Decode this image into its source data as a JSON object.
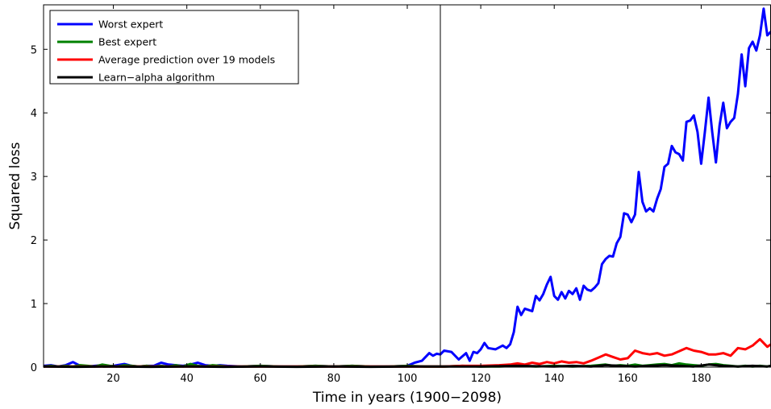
{
  "chart_data": {
    "type": "line",
    "xlabel": "Time in years (1900−2098)",
    "ylabel": "Squared loss",
    "xlim": [
      1,
      199
    ],
    "ylim": [
      0,
      5.7
    ],
    "xticks": [
      20,
      40,
      60,
      80,
      100,
      120,
      140,
      160,
      180
    ],
    "yticks": [
      0,
      1,
      2,
      3,
      4,
      5
    ],
    "grid": false,
    "legend_position": "top-left",
    "vertical_marker_x": 109,
    "colors": {
      "worst": "#0000ff",
      "best": "#008000",
      "average": "#ff0000",
      "learn_alpha": "#000000"
    },
    "series": [
      {
        "name": "Worst expert",
        "color": "#0000ff",
        "x": [
          1,
          3,
          5,
          7,
          9,
          11,
          13,
          15,
          17,
          19,
          21,
          23,
          25,
          27,
          29,
          31,
          33,
          35,
          37,
          39,
          41,
          43,
          45,
          47,
          49,
          51,
          55,
          60,
          65,
          70,
          75,
          80,
          85,
          90,
          95,
          100,
          102,
          104,
          106,
          107,
          108,
          109,
          110,
          112,
          114,
          116,
          117,
          118,
          119,
          120,
          121,
          122,
          124,
          126,
          127,
          128,
          129,
          130,
          131,
          132,
          133,
          134,
          135,
          136,
          137,
          138,
          139,
          140,
          141,
          142,
          143,
          144,
          145,
          146,
          147,
          148,
          149,
          150,
          151,
          152,
          153,
          154,
          155,
          156,
          157,
          158,
          159,
          160,
          161,
          162,
          163,
          164,
          165,
          166,
          167,
          168,
          169,
          170,
          171,
          172,
          173,
          174,
          175,
          176,
          177,
          178,
          179,
          180,
          181,
          182,
          183,
          184,
          185,
          186,
          187,
          188,
          189,
          190,
          191,
          192,
          193,
          194,
          195,
          196,
          197,
          198,
          199
        ],
        "y": [
          0.02,
          0.03,
          0.01,
          0.03,
          0.08,
          0.02,
          0.01,
          0.02,
          0.03,
          0.01,
          0.03,
          0.05,
          0.02,
          0.01,
          0.02,
          0.02,
          0.07,
          0.04,
          0.03,
          0.02,
          0.04,
          0.07,
          0.03,
          0.02,
          0.03,
          0.02,
          0.01,
          0.02,
          0.01,
          0.01,
          0.02,
          0.01,
          0.02,
          0.01,
          0.01,
          0.02,
          0.07,
          0.1,
          0.22,
          0.18,
          0.21,
          0.2,
          0.26,
          0.24,
          0.12,
          0.22,
          0.1,
          0.24,
          0.22,
          0.28,
          0.38,
          0.3,
          0.28,
          0.34,
          0.3,
          0.36,
          0.55,
          0.95,
          0.82,
          0.92,
          0.9,
          0.88,
          1.12,
          1.05,
          1.15,
          1.3,
          1.42,
          1.12,
          1.06,
          1.18,
          1.08,
          1.2,
          1.15,
          1.24,
          1.06,
          1.28,
          1.22,
          1.2,
          1.25,
          1.32,
          1.62,
          1.7,
          1.75,
          1.74,
          1.95,
          2.05,
          2.42,
          2.4,
          2.28,
          2.4,
          3.07,
          2.6,
          2.45,
          2.5,
          2.45,
          2.65,
          2.8,
          3.15,
          3.2,
          3.48,
          3.38,
          3.35,
          3.25,
          3.86,
          3.88,
          3.96,
          3.7,
          3.2,
          3.7,
          4.24,
          3.7,
          3.22,
          3.8,
          4.16,
          3.76,
          3.86,
          3.92,
          4.3,
          4.92,
          4.42,
          5.02,
          5.12,
          4.98,
          5.22,
          5.64,
          5.22,
          5.28
        ]
      },
      {
        "name": "Best expert",
        "color": "#008000",
        "x": [
          1,
          3,
          5,
          7,
          9,
          11,
          13,
          15,
          17,
          19,
          21,
          23,
          25,
          27,
          29,
          31,
          33,
          35,
          37,
          39,
          41,
          43,
          45,
          47,
          49,
          51,
          55,
          60,
          65,
          70,
          75,
          80,
          85,
          90,
          95,
          100,
          105,
          110,
          115,
          120,
          125,
          130,
          135,
          140,
          145,
          150,
          152,
          154,
          156,
          158,
          160,
          162,
          164,
          166,
          168,
          170,
          172,
          174,
          176,
          178,
          180,
          182,
          184,
          186,
          188,
          190,
          192,
          194,
          196,
          198,
          199
        ],
        "y": [
          0.01,
          0.02,
          0.01,
          0.02,
          0.01,
          0.03,
          0.02,
          0.01,
          0.04,
          0.02,
          0.01,
          0.03,
          0.02,
          0.01,
          0.02,
          0.01,
          0.02,
          0.01,
          0.03,
          0.01,
          0.05,
          0.02,
          0.01,
          0.03,
          0.02,
          0.01,
          0.01,
          0.02,
          0.01,
          0.01,
          0.02,
          0.01,
          0.02,
          0.01,
          0.01,
          0.02,
          0.01,
          0.01,
          0.02,
          0.01,
          0.01,
          0.02,
          0.01,
          0.02,
          0.01,
          0.02,
          0.03,
          0.04,
          0.02,
          0.03,
          0.02,
          0.04,
          0.02,
          0.03,
          0.04,
          0.05,
          0.03,
          0.06,
          0.04,
          0.03,
          0.02,
          0.04,
          0.05,
          0.03,
          0.02,
          0.01,
          0.02,
          0.01,
          0.02,
          0.01,
          0.02
        ]
      },
      {
        "name": "Average prediction over 19 models",
        "color": "#ff0000",
        "x": [
          1,
          10,
          20,
          30,
          40,
          50,
          60,
          70,
          80,
          90,
          100,
          105,
          110,
          115,
          120,
          125,
          128,
          130,
          132,
          134,
          136,
          138,
          140,
          142,
          144,
          146,
          148,
          150,
          152,
          154,
          156,
          158,
          160,
          162,
          164,
          166,
          168,
          170,
          172,
          174,
          176,
          178,
          180,
          182,
          184,
          186,
          188,
          190,
          192,
          194,
          196,
          198,
          199
        ],
        "y": [
          0.01,
          0.01,
          0.01,
          0.01,
          0.01,
          0.01,
          0.01,
          0.01,
          0.01,
          0.01,
          0.01,
          0.01,
          0.01,
          0.02,
          0.02,
          0.03,
          0.04,
          0.06,
          0.04,
          0.07,
          0.05,
          0.08,
          0.06,
          0.09,
          0.07,
          0.08,
          0.06,
          0.1,
          0.15,
          0.2,
          0.16,
          0.12,
          0.14,
          0.26,
          0.22,
          0.2,
          0.22,
          0.18,
          0.2,
          0.25,
          0.3,
          0.26,
          0.24,
          0.2,
          0.2,
          0.22,
          0.18,
          0.3,
          0.28,
          0.34,
          0.44,
          0.32,
          0.36
        ]
      },
      {
        "name": "Learn−alpha algorithm",
        "color": "#000000",
        "x": [
          1,
          10,
          20,
          30,
          40,
          50,
          60,
          70,
          80,
          90,
          100,
          110,
          120,
          130,
          140,
          145,
          150,
          154,
          158,
          162,
          166,
          170,
          174,
          178,
          182,
          184,
          186,
          190,
          194,
          198,
          199
        ],
        "y": [
          0.01,
          0.005,
          0.01,
          0.005,
          0.01,
          0.005,
          0.01,
          0.005,
          0.01,
          0.005,
          0.01,
          0.01,
          0.01,
          0.02,
          0.01,
          0.02,
          0.01,
          0.03,
          0.02,
          0.01,
          0.02,
          0.03,
          0.02,
          0.01,
          0.04,
          0.03,
          0.02,
          0.01,
          0.02,
          0.01,
          0.02
        ]
      }
    ]
  }
}
